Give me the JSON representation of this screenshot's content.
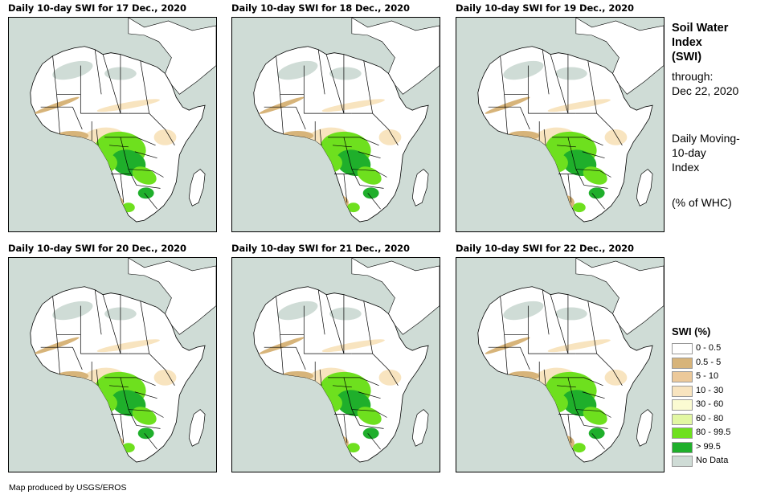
{
  "panels": [
    {
      "title": "Daily 10-day SWI for 17 Dec., 2020"
    },
    {
      "title": "Daily 10-day SWI for 18 Dec., 2020"
    },
    {
      "title": "Daily 10-day SWI for 19 Dec., 2020"
    },
    {
      "title": "Daily 10-day SWI for 20 Dec., 2020"
    },
    {
      "title": "Daily 10-day SWI for 21 Dec., 2020"
    },
    {
      "title": "Daily 10-day SWI for 22 Dec., 2020"
    }
  ],
  "side": {
    "title_line1": "Soil Water",
    "title_line2": "Index",
    "title_line3": "(SWI)",
    "through_label": "through:",
    "through_date": "Dec 22, 2020",
    "desc_line1": "Daily Moving-",
    "desc_line2": "10-day",
    "desc_line3": "Index",
    "units": "(% of WHC)"
  },
  "legend": {
    "title": "SWI (%)",
    "items": [
      {
        "label": "0 - 0.5",
        "color": "#ffffff"
      },
      {
        "label": "0.5 - 5",
        "color": "#d7b47a"
      },
      {
        "label": "5 - 10",
        "color": "#ecc99a"
      },
      {
        "label": "10 - 30",
        "color": "#f8e4bf"
      },
      {
        "label": "30 - 60",
        "color": "#fbfbd2"
      },
      {
        "label": "60 - 80",
        "color": "#e2f7a3"
      },
      {
        "label": "80 - 99.5",
        "color": "#6ee01e"
      },
      {
        "label": "> 99.5",
        "color": "#1faf2b"
      },
      {
        "label": "No Data",
        "color": "#cfdcd6"
      }
    ]
  },
  "credit": "Map produced by USGS/EROS",
  "colors": {
    "ocean": "#cfdcd6",
    "land": "#ffffff",
    "dry_tan": "#d7b47a",
    "light_tan": "#f8e4bf",
    "wet_light": "#6ee01e",
    "wet_dark": "#1faf2b"
  }
}
